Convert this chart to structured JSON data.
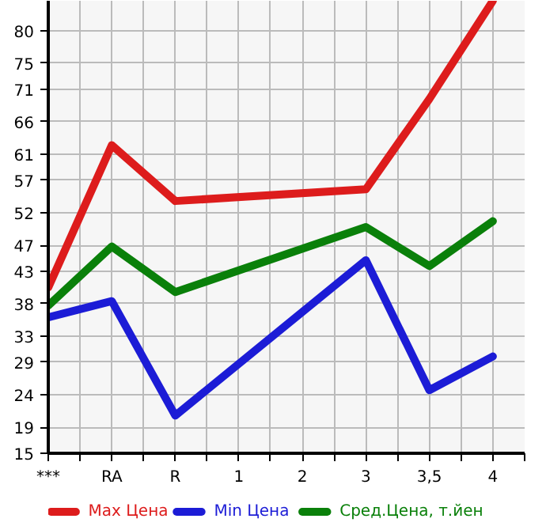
{
  "chart_data": {
    "type": "line",
    "categories": [
      "***",
      "RA",
      "R",
      "1",
      "2",
      "3",
      "3,5",
      "4"
    ],
    "series": [
      {
        "name": "Max Цена",
        "color": "#dd1c1c",
        "values": [
          40.5,
          62.4,
          53.8,
          null,
          null,
          55.6,
          69.5,
          84.6
        ]
      },
      {
        "name": "Min Цена",
        "color": "#1c1cd6",
        "values": [
          35.9,
          38.4,
          20.8,
          null,
          null,
          44.7,
          24.7,
          29.9
        ]
      },
      {
        "name": "Сред.Цена, т.йен",
        "color": "#0a800a",
        "values": [
          37.7,
          46.8,
          39.8,
          null,
          null,
          49.8,
          43.8,
          50.7
        ]
      }
    ],
    "ylim": [
      15,
      84.6
    ],
    "yticks": [
      15,
      19,
      24,
      29,
      33,
      38,
      43,
      47,
      52,
      57,
      61,
      66,
      71,
      75,
      80
    ],
    "grid": true,
    "legend": "bottom",
    "marker": "none",
    "line_style": "solid"
  }
}
